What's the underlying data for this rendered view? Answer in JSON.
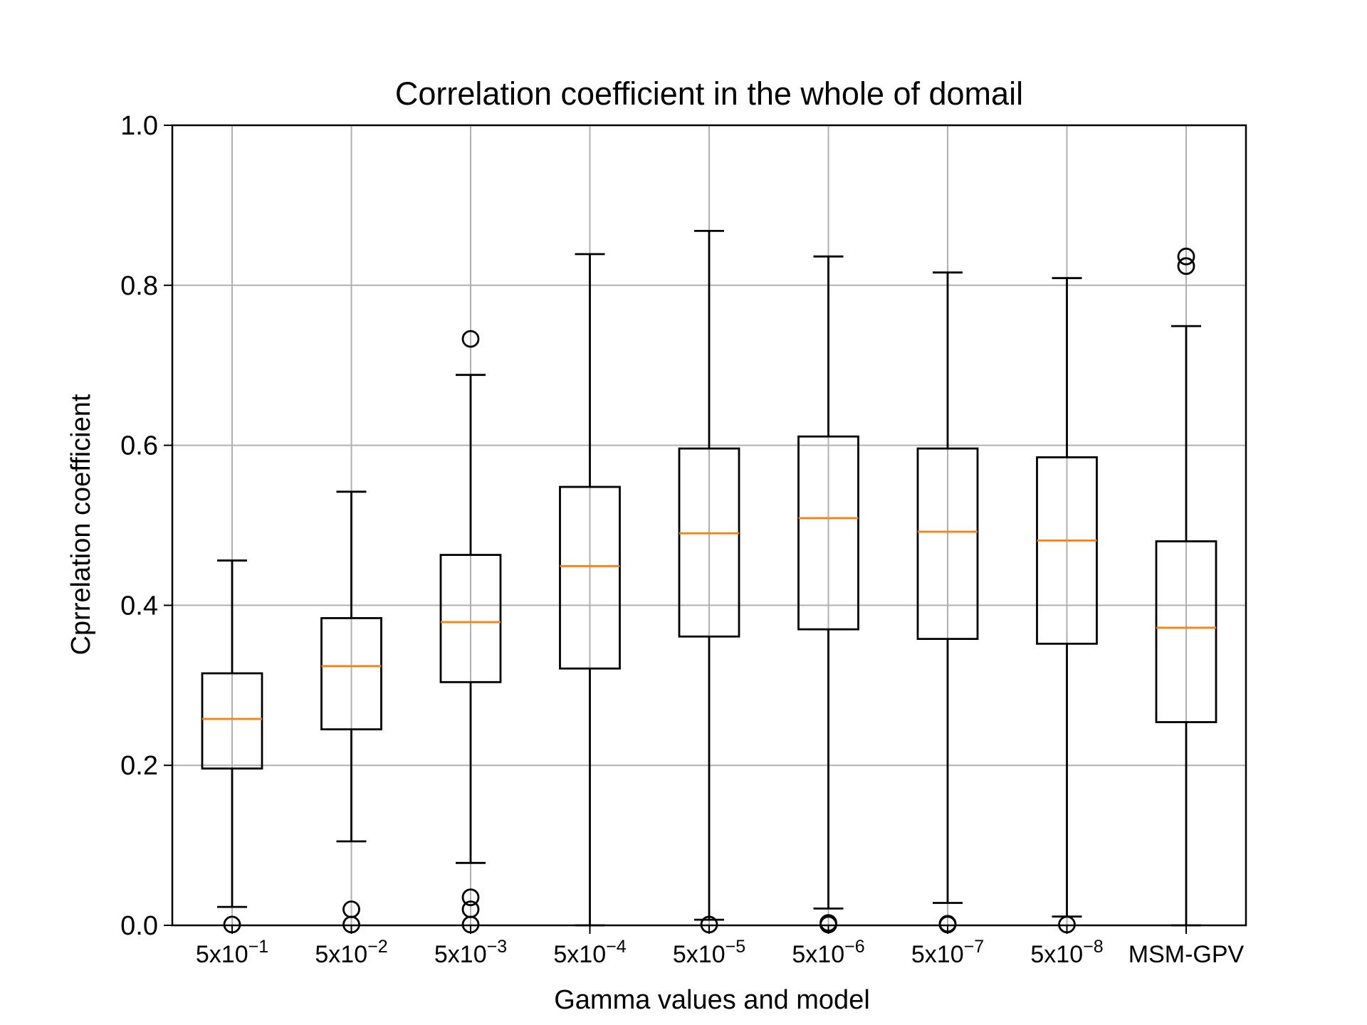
{
  "chart_data": {
    "type": "boxplot",
    "title": "Correlation coefficient in the whole of domail",
    "xlabel": "Gamma values and model",
    "ylabel": "Cprrelation coefficient",
    "ylim": [
      0,
      1.0
    ],
    "yticks": [
      0.0,
      0.2,
      0.4,
      0.6,
      0.8,
      1.0
    ],
    "ytick_labels": [
      "0.0",
      "0.2",
      "0.4",
      "0.6",
      "0.8",
      "1.0"
    ],
    "grid": true,
    "colors": {
      "box": "#000000",
      "median": "#ff7f0e",
      "grid": "#b0b0b0"
    },
    "categories": [
      {
        "base": "5x10",
        "exp": "−1"
      },
      {
        "base": "5x10",
        "exp": "−2"
      },
      {
        "base": "5x10",
        "exp": "−3"
      },
      {
        "base": "5x10",
        "exp": "−4"
      },
      {
        "base": "5x10",
        "exp": "−5"
      },
      {
        "base": "5x10",
        "exp": "−6"
      },
      {
        "base": "5x10",
        "exp": "−7"
      },
      {
        "base": "5x10",
        "exp": "−8"
      },
      {
        "base": "MSM-GPV",
        "exp": ""
      }
    ],
    "boxes": [
      {
        "whislo": 0.023,
        "q1": 0.196,
        "med": 0.258,
        "q3": 0.315,
        "whishi": 0.456,
        "fliers": [
          0.001
        ]
      },
      {
        "whislo": 0.105,
        "q1": 0.245,
        "med": 0.324,
        "q3": 0.384,
        "whishi": 0.542,
        "fliers": [
          0.02,
          0.001
        ]
      },
      {
        "whislo": 0.078,
        "q1": 0.304,
        "med": 0.379,
        "q3": 0.463,
        "whishi": 0.688,
        "fliers": [
          0.733,
          0.035,
          0.02,
          0.001
        ]
      },
      {
        "whislo": 0.0,
        "q1": 0.321,
        "med": 0.449,
        "q3": 0.548,
        "whishi": 0.839,
        "fliers": []
      },
      {
        "whislo": 0.007,
        "q1": 0.361,
        "med": 0.49,
        "q3": 0.596,
        "whishi": 0.868,
        "fliers": [
          0.001
        ]
      },
      {
        "whislo": 0.021,
        "q1": 0.37,
        "med": 0.509,
        "q3": 0.611,
        "whishi": 0.836,
        "fliers": [
          0.003,
          0.001
        ]
      },
      {
        "whislo": 0.028,
        "q1": 0.358,
        "med": 0.492,
        "q3": 0.596,
        "whishi": 0.816,
        "fliers": [
          0.002,
          0.001
        ]
      },
      {
        "whislo": 0.011,
        "q1": 0.352,
        "med": 0.481,
        "q3": 0.585,
        "whishi": 0.809,
        "fliers": [
          0.001
        ]
      },
      {
        "whislo": 0.0,
        "q1": 0.254,
        "med": 0.372,
        "q3": 0.48,
        "whishi": 0.749,
        "fliers": [
          0.836,
          0.824
        ]
      }
    ]
  }
}
